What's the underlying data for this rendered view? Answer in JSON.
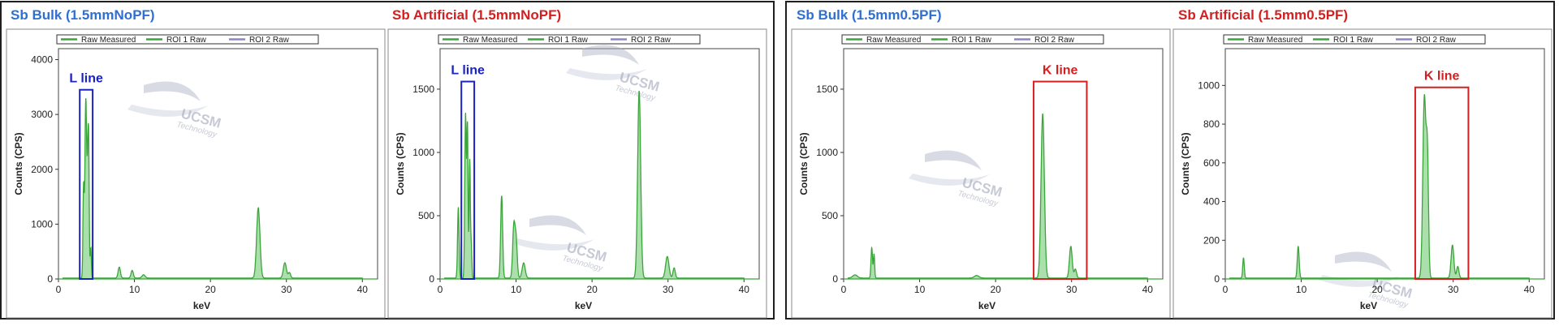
{
  "titles": [
    "Sb Bulk (1.5mmNoPF)",
    "Sb Artificial (1.5mmNoPF)",
    "Sb Bulk (1.5mm0.5PF)",
    "Sb Artificial (1.5mm0.5PF)"
  ],
  "colors": {
    "series": "#3aa63a",
    "fill": "#8fd48f",
    "roi2": "#8c85c6",
    "blue_box": "#1a22c4",
    "red_box": "#d42020"
  },
  "watermark": {
    "text": "UCSM",
    "sub": "Technology"
  },
  "chart_data": [
    {
      "type": "area",
      "title": "Sb Bulk (1.5mmNoPF)",
      "xlabel": "keV",
      "ylabel": "Counts (CPS)",
      "xlim": [
        0,
        42
      ],
      "ylim": [
        0,
        4200
      ],
      "xticks": [
        "0",
        "10",
        "20",
        "30",
        "40"
      ],
      "yticks": [
        "0",
        "1000",
        "2000",
        "3000",
        "4000"
      ],
      "legend": [
        "Raw Measured",
        "ROI 1 Raw",
        "ROI 2 Raw"
      ],
      "annotation": {
        "text": "L line",
        "color": "blue",
        "x_range": [
          2.8,
          4.5
        ],
        "y_max": 3450
      },
      "series": [
        {
          "name": "Raw Measured",
          "peaks": [
            {
              "x": 3.6,
              "y": 3250,
              "w": 0.12
            },
            {
              "x": 3.9,
              "y": 2400,
              "w": 0.1
            },
            {
              "x": 3.3,
              "y": 1600,
              "w": 0.08
            },
            {
              "x": 4.25,
              "y": 550,
              "w": 0.08
            },
            {
              "x": 4.0,
              "y": 900,
              "w": 0.06
            },
            {
              "x": 8.0,
              "y": 200,
              "w": 0.15
            },
            {
              "x": 9.7,
              "y": 140,
              "w": 0.15
            },
            {
              "x": 11.2,
              "y": 60,
              "w": 0.2
            },
            {
              "x": 26.3,
              "y": 1280,
              "w": 0.22
            },
            {
              "x": 29.8,
              "y": 280,
              "w": 0.2
            },
            {
              "x": 30.4,
              "y": 100,
              "w": 0.15
            }
          ]
        }
      ]
    },
    {
      "type": "area",
      "title": "Sb Artificial (1.5mmNoPF)",
      "xlabel": "keV",
      "ylabel": "Counts (CPS)",
      "xlim": [
        0,
        42
      ],
      "ylim": [
        0,
        1820
      ],
      "xticks": [
        "0",
        "10",
        "20",
        "30",
        "40"
      ],
      "yticks": [
        "0",
        "500",
        "1000",
        "1500"
      ],
      "legend": [
        "Raw Measured",
        "ROI 1 Raw",
        "ROI 2 Raw"
      ],
      "annotation": {
        "text": "L line",
        "color": "blue",
        "x_range": [
          2.8,
          4.5
        ],
        "y_max": 1560
      },
      "series": [
        {
          "name": "Raw Measured",
          "peaks": [
            {
              "x": 2.4,
              "y": 560,
              "w": 0.1
            },
            {
              "x": 3.35,
              "y": 1300,
              "w": 0.1
            },
            {
              "x": 3.6,
              "y": 1180,
              "w": 0.08
            },
            {
              "x": 3.9,
              "y": 930,
              "w": 0.08
            },
            {
              "x": 4.1,
              "y": 250,
              "w": 0.08
            },
            {
              "x": 8.1,
              "y": 650,
              "w": 0.13
            },
            {
              "x": 9.7,
              "y": 400,
              "w": 0.15
            },
            {
              "x": 10.0,
              "y": 300,
              "w": 0.15
            },
            {
              "x": 11.0,
              "y": 120,
              "w": 0.2
            },
            {
              "x": 26.2,
              "y": 1480,
              "w": 0.2
            },
            {
              "x": 29.9,
              "y": 170,
              "w": 0.22
            },
            {
              "x": 30.8,
              "y": 80,
              "w": 0.15
            }
          ]
        }
      ]
    },
    {
      "type": "area",
      "title": "Sb Bulk (1.5mm0.5PF)",
      "xlabel": "keV",
      "ylabel": "Counts (CPS)",
      "xlim": [
        0,
        42
      ],
      "ylim": [
        0,
        1820
      ],
      "xticks": [
        "0",
        "10",
        "20",
        "30",
        "40"
      ],
      "yticks": [
        "0",
        "500",
        "1000",
        "1500"
      ],
      "legend": [
        "Raw Measured",
        "ROI 1 Raw",
        "ROI 2 Raw"
      ],
      "annotation": {
        "text": "K line",
        "color": "red",
        "x_range": [
          25.0,
          32.0
        ],
        "y_max": 1560
      },
      "series": [
        {
          "name": "Raw Measured",
          "peaks": [
            {
              "x": 1.5,
              "y": 25,
              "w": 0.3
            },
            {
              "x": 3.7,
              "y": 240,
              "w": 0.1
            },
            {
              "x": 4.0,
              "y": 190,
              "w": 0.08
            },
            {
              "x": 17.5,
              "y": 20,
              "w": 0.3
            },
            {
              "x": 26.2,
              "y": 1300,
              "w": 0.22
            },
            {
              "x": 29.9,
              "y": 250,
              "w": 0.18
            },
            {
              "x": 30.5,
              "y": 70,
              "w": 0.15
            }
          ]
        }
      ]
    },
    {
      "type": "area",
      "title": "Sb Artificial (1.5mm0.5PF)",
      "xlabel": "keV",
      "ylabel": "Counts (CPS)",
      "xlim": [
        0,
        42
      ],
      "ylim": [
        0,
        1190
      ],
      "xticks": [
        "0",
        "10",
        "20",
        "30",
        "40"
      ],
      "yticks": [
        "0",
        "200",
        "400",
        "600",
        "800",
        "1000"
      ],
      "legend": [
        "Raw Measured",
        "ROI 1 Raw",
        "ROI 2 Raw"
      ],
      "annotation": {
        "text": "K line",
        "color": "red",
        "x_range": [
          25.0,
          32.0
        ],
        "y_max": 990
      },
      "series": [
        {
          "name": "Raw Measured",
          "peaks": [
            {
              "x": 2.4,
              "y": 105,
              "w": 0.1
            },
            {
              "x": 9.6,
              "y": 165,
              "w": 0.12
            },
            {
              "x": 26.2,
              "y": 930,
              "w": 0.2
            },
            {
              "x": 26.6,
              "y": 600,
              "w": 0.15
            },
            {
              "x": 29.9,
              "y": 170,
              "w": 0.18
            },
            {
              "x": 30.6,
              "y": 60,
              "w": 0.15
            }
          ]
        }
      ]
    }
  ]
}
